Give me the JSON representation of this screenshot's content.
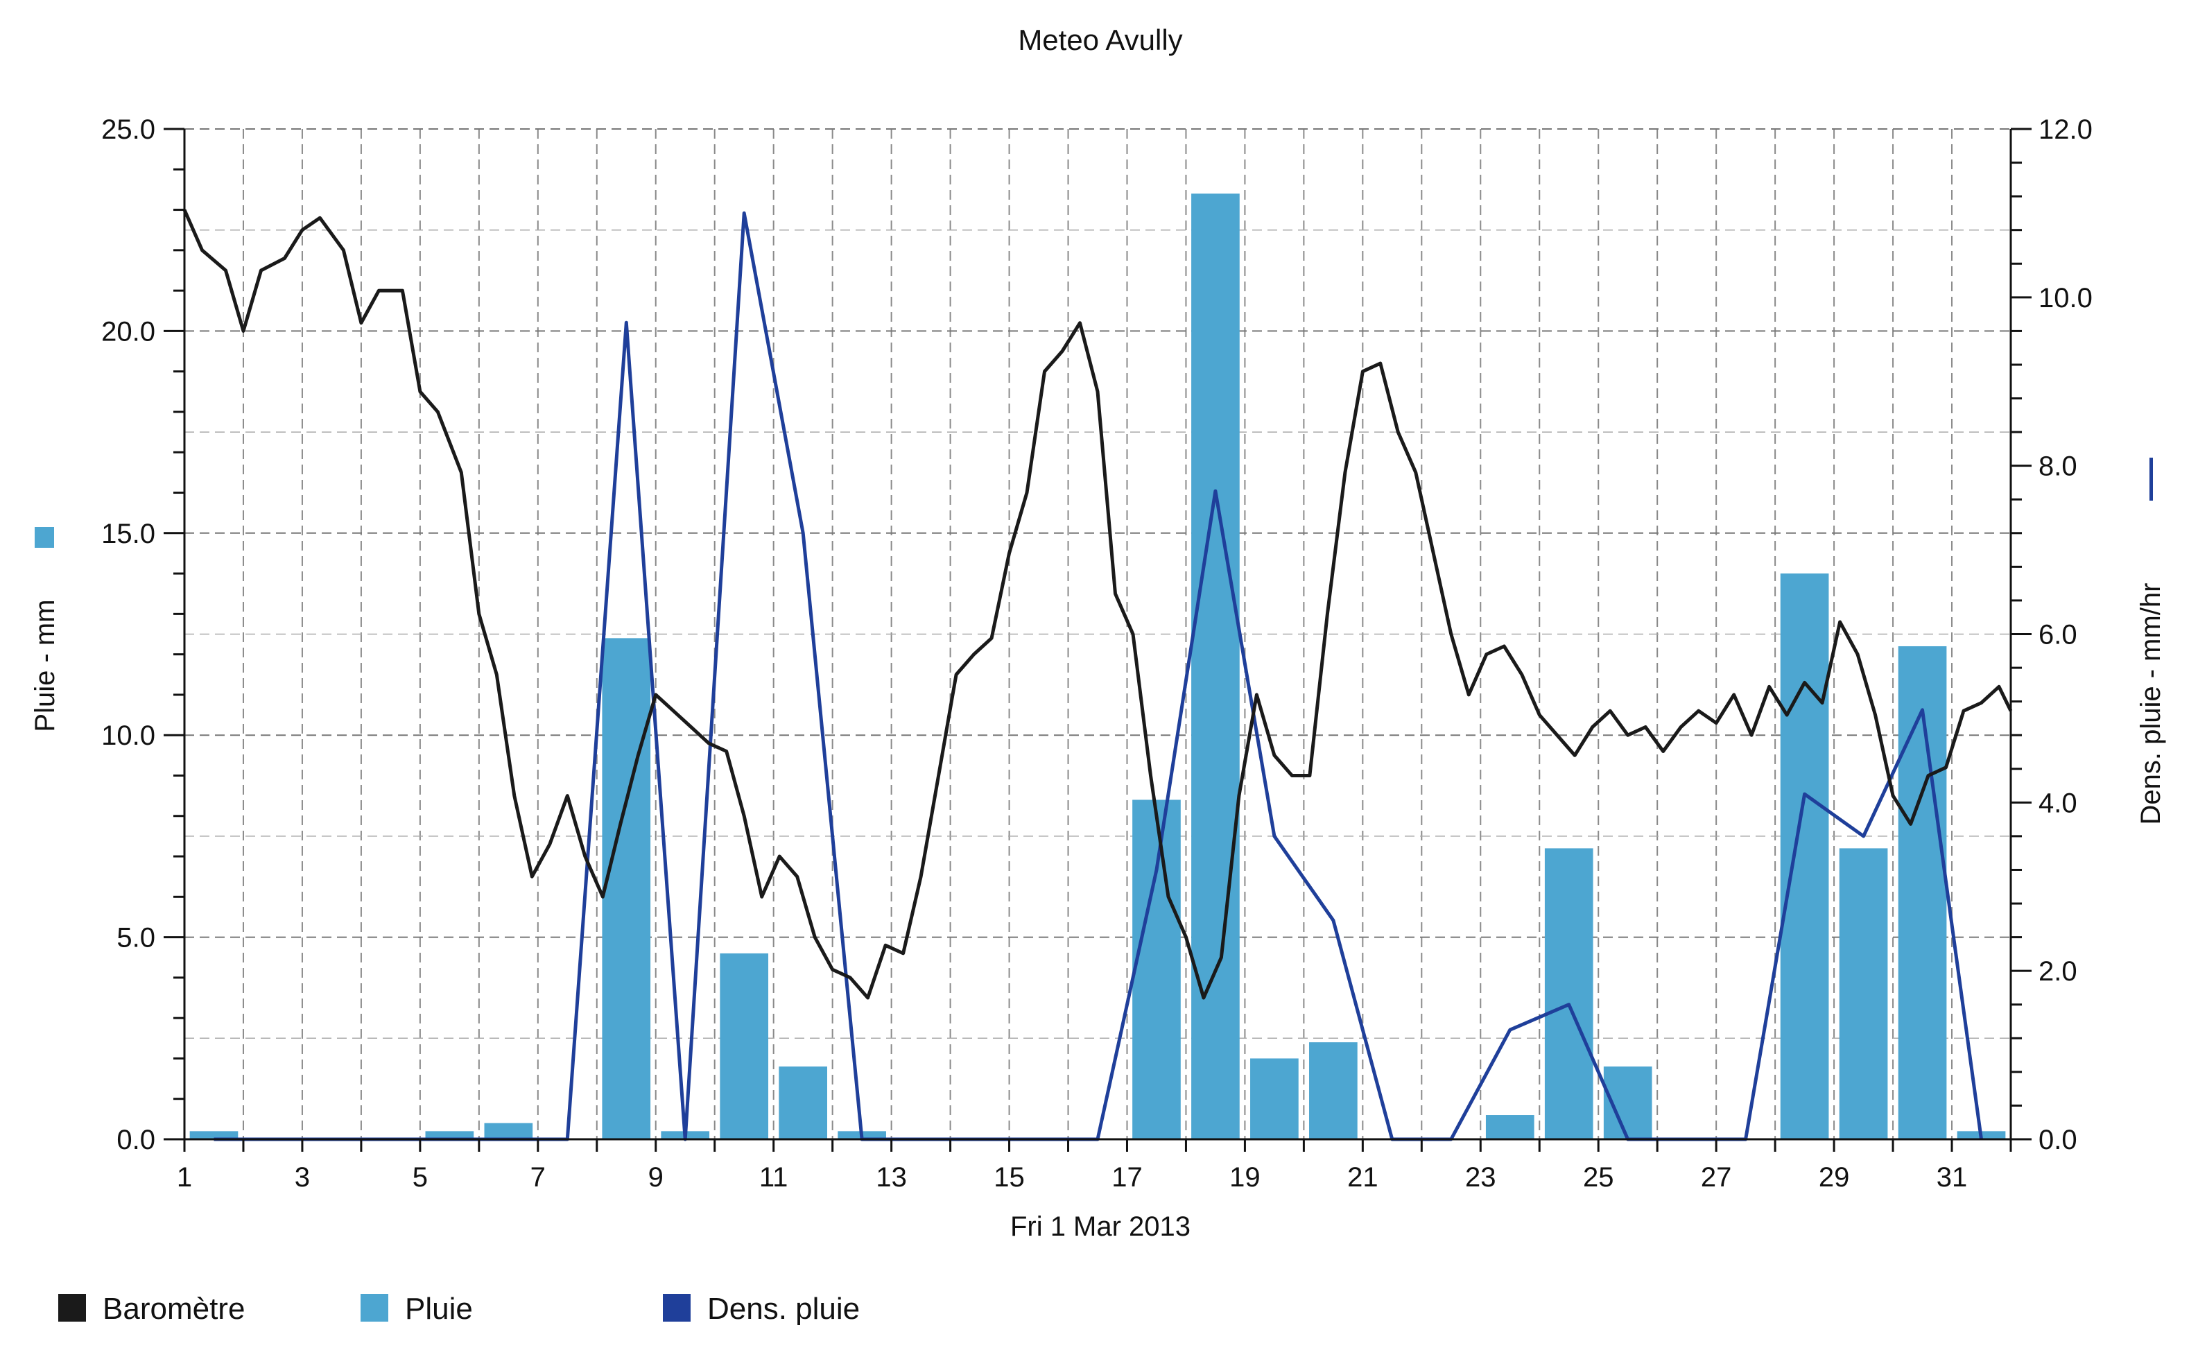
{
  "chart_data": {
    "type": "bar+line",
    "title": "Meteo  Avully",
    "xlabel": "Fri 1 Mar 2013",
    "ylabel_left": "Pluie - mm",
    "ylabel_right": "Dens. pluie - mm/hr",
    "xlim": [
      1,
      32
    ],
    "ylim_left": [
      0,
      25
    ],
    "ylim_right": [
      0,
      12
    ],
    "x_ticks": [
      "1",
      "3",
      "5",
      "7",
      "9",
      "11",
      "13",
      "15",
      "17",
      "19",
      "21",
      "23",
      "25",
      "27",
      "29",
      "31"
    ],
    "y_left_ticks": [
      "0.0",
      "5.0",
      "10.0",
      "15.0",
      "20.0",
      "25.0"
    ],
    "y_right_ticks": [
      "0.0",
      "2.0",
      "4.0",
      "6.0",
      "8.0",
      "10.0",
      "12.0"
    ],
    "grid": true,
    "legend_position": "bottom",
    "legend": [
      {
        "label": "Baromètre",
        "color": "#1a1a1a"
      },
      {
        "label": "Pluie",
        "color": "#4da6d1"
      },
      {
        "label": "Dens. pluie",
        "color": "#1f3f9a"
      }
    ],
    "series": [
      {
        "name": "Pluie",
        "kind": "bar",
        "axis": "left",
        "color": "#4da6d1",
        "x": [
          1.5,
          2.5,
          3.5,
          4.5,
          5.5,
          6.5,
          7.5,
          8.5,
          9.5,
          10.5,
          11.5,
          12.5,
          13.5,
          14.5,
          15.5,
          16.5,
          17.5,
          18.5,
          19.5,
          20.5,
          21.5,
          22.5,
          23.5,
          24.5,
          25.5,
          26.5,
          27.5,
          28.5,
          29.5,
          30.5,
          31.5
        ],
        "values": [
          0.2,
          0,
          0,
          0,
          0.2,
          0.4,
          0,
          12.4,
          0.2,
          4.6,
          1.8,
          0.2,
          0,
          0,
          0,
          0,
          8.4,
          23.4,
          2.0,
          2.4,
          0,
          0,
          0.6,
          7.2,
          1.8,
          0,
          0,
          14.0,
          7.2,
          12.2,
          0.2
        ]
      },
      {
        "name": "Dens. pluie",
        "kind": "line",
        "axis": "right",
        "color": "#1f3f9a",
        "x": [
          1.5,
          2.5,
          3.5,
          4.5,
          5.5,
          6.5,
          7.5,
          8.5,
          9.5,
          10.5,
          11.5,
          12.5,
          13.5,
          14.5,
          15.5,
          16.5,
          17.5,
          18.5,
          19.5,
          20.5,
          21.5,
          22.5,
          23.5,
          24.5,
          25.5,
          26.5,
          27.5,
          28.5,
          29.5,
          30.5,
          31.5
        ],
        "values": [
          0,
          0,
          0,
          0,
          0,
          0,
          0,
          9.7,
          0,
          11.0,
          7.2,
          0,
          0,
          0,
          0,
          0,
          3.2,
          7.7,
          3.6,
          2.6,
          0,
          0,
          1.3,
          1.6,
          0,
          0,
          0,
          4.1,
          3.6,
          5.1,
          0
        ]
      },
      {
        "name": "Baromètre",
        "kind": "line",
        "axis": "left",
        "color": "#1a1a1a",
        "x": [
          1.0,
          1.3,
          1.7,
          2.0,
          2.3,
          2.7,
          3.0,
          3.3,
          3.7,
          4.0,
          4.3,
          4.7,
          5.0,
          5.3,
          5.7,
          6.0,
          6.3,
          6.6,
          6.9,
          7.2,
          7.5,
          7.8,
          8.1,
          8.4,
          8.7,
          9.0,
          9.3,
          9.6,
          9.9,
          10.2,
          10.5,
          10.8,
          11.1,
          11.4,
          11.7,
          12.0,
          12.3,
          12.6,
          12.9,
          13.2,
          13.5,
          13.8,
          14.1,
          14.4,
          14.7,
          15.0,
          15.3,
          15.6,
          15.9,
          16.2,
          16.5,
          16.8,
          17.1,
          17.4,
          17.7,
          18.0,
          18.3,
          18.6,
          18.9,
          19.2,
          19.5,
          19.8,
          20.1,
          20.4,
          20.7,
          21.0,
          21.3,
          21.6,
          21.9,
          22.2,
          22.5,
          22.8,
          23.1,
          23.4,
          23.7,
          24.0,
          24.3,
          24.6,
          24.9,
          25.2,
          25.5,
          25.8,
          26.1,
          26.4,
          26.7,
          27.0,
          27.3,
          27.6,
          27.9,
          28.2,
          28.5,
          28.8,
          29.1,
          29.4,
          29.7,
          30.0,
          30.3,
          30.6,
          30.9,
          31.2,
          31.5,
          31.8,
          32.0
        ],
        "values": [
          23.0,
          22.0,
          21.5,
          20.0,
          21.5,
          21.8,
          22.5,
          22.8,
          22.0,
          20.2,
          21.0,
          21.0,
          18.5,
          18.0,
          16.5,
          13.0,
          11.5,
          8.5,
          6.5,
          7.3,
          8.5,
          7.0,
          6.0,
          7.8,
          9.5,
          11.0,
          10.6,
          10.2,
          9.8,
          9.6,
          8.0,
          6.0,
          7.0,
          6.5,
          5.0,
          4.2,
          4.0,
          3.5,
          4.8,
          4.6,
          6.5,
          9.0,
          11.5,
          12.0,
          12.4,
          14.5,
          16.0,
          19.0,
          19.5,
          20.2,
          18.5,
          13.5,
          12.5,
          9.0,
          6.0,
          5.0,
          3.5,
          4.5,
          8.5,
          11.0,
          9.5,
          9.0,
          9.0,
          13.0,
          16.5,
          19.0,
          19.2,
          17.5,
          16.5,
          14.5,
          12.5,
          11.0,
          12.0,
          12.2,
          11.5,
          10.5,
          10.0,
          9.5,
          10.2,
          10.6,
          10.0,
          10.2,
          9.6,
          10.2,
          10.6,
          10.3,
          11.0,
          10.0,
          11.2,
          10.5,
          11.3,
          10.8,
          12.8,
          12.0,
          10.5,
          8.5,
          7.8,
          9.0,
          9.2,
          10.6,
          10.8,
          11.2,
          10.6
        ]
      }
    ]
  }
}
